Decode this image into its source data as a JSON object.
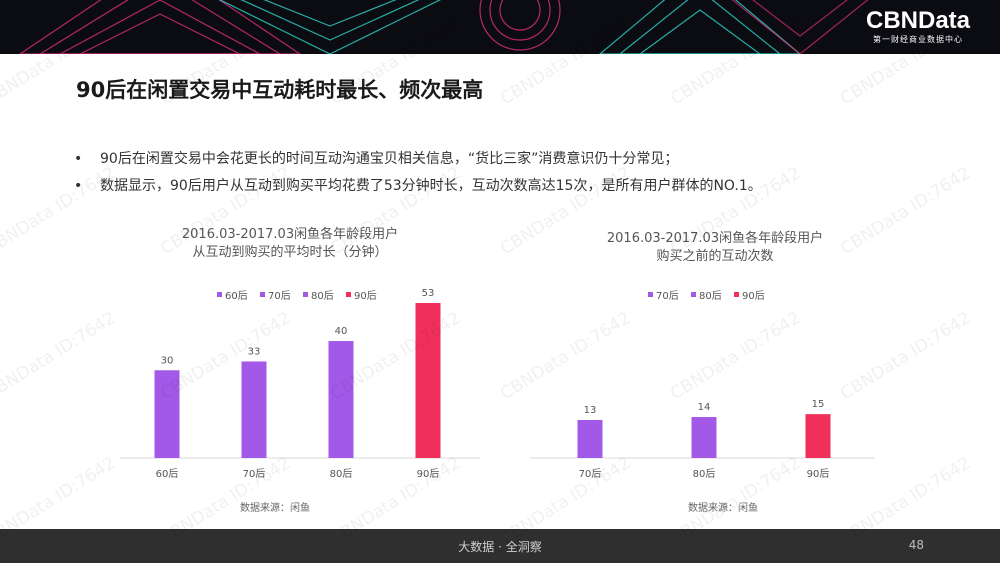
{
  "brand": {
    "name": "CBNData",
    "subtitle": "第一财经商业数据中心"
  },
  "page_title": "90后在闲置交易中互动耗时最长、频次最高",
  "bullets": [
    "90后在闲置交易中会花更长的时间互动沟通宝贝相关信息，“货比三家”消费意识仍十分常见；",
    "数据显示，90后用户从互动到购买平均花费了53分钟时长，互动次数高达15次，是所有用户群体的NO.1。"
  ],
  "bullet_symbol": "•",
  "watermark_text": "CBNData ID:7642",
  "colors": {
    "purple": "#a259e8",
    "red": "#f0305a",
    "banner": "#0b0b12",
    "footer": "#2f2f2f"
  },
  "chart_data": [
    {
      "type": "bar",
      "title_lines": [
        "2016.03-2017.03闲鱼各年龄段用户",
        "从互动到购买的平均时长（分钟）"
      ],
      "categories": [
        "60后",
        "70后",
        "80后",
        "90后"
      ],
      "series": [
        {
          "name": "60后",
          "color": "#a259e8"
        },
        {
          "name": "70后",
          "color": "#a259e8"
        },
        {
          "name": "80后",
          "color": "#a259e8"
        },
        {
          "name": "90后",
          "color": "#f0305a"
        }
      ],
      "values": [
        30,
        33,
        40,
        53
      ],
      "bar_colors": [
        "#a259e8",
        "#a259e8",
        "#a259e8",
        "#f0305a"
      ],
      "ylim": [
        0,
        53
      ],
      "legend": "top",
      "grid": false,
      "source": "数据来源：闲鱼"
    },
    {
      "type": "bar",
      "title_lines": [
        "2016.03-2017.03闲鱼各年龄段用户",
        "购买之前的互动次数"
      ],
      "categories": [
        "70后",
        "80后",
        "90后"
      ],
      "series": [
        {
          "name": "70后",
          "color": "#a259e8"
        },
        {
          "name": "80后",
          "color": "#a259e8"
        },
        {
          "name": "90后",
          "color": "#f0305a"
        }
      ],
      "values": [
        13,
        14,
        15
      ],
      "bar_colors": [
        "#a259e8",
        "#a259e8",
        "#f0305a"
      ],
      "ylim": [
        0,
        53
      ],
      "legend": "top",
      "grid": false,
      "source": "数据来源：闲鱼"
    }
  ],
  "footer": {
    "text": "大数据 · 全洞察",
    "page_number": "48"
  }
}
